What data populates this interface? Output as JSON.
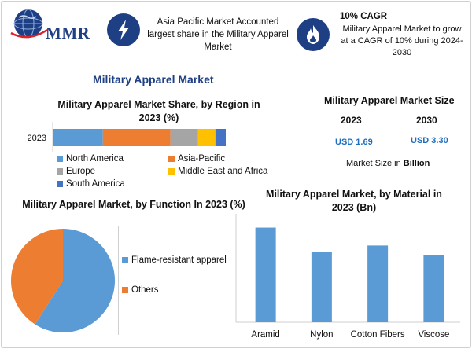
{
  "colors": {
    "navy": "#1f3f85",
    "blue": "#5b9bd5",
    "orange": "#ed7d31",
    "gray": "#a5a5a5",
    "yellow": "#ffc000",
    "darkblue": "#4472c4",
    "value_blue": "#1f6fc0"
  },
  "header": {
    "logo_text": "MMR",
    "highlight_1": "Asia Pacific Market Accounted largest share in the Military Apparel Market",
    "icon_1": "lightning-icon",
    "icon_2": "flame-icon",
    "cagr_title": "10% CAGR",
    "cagr_desc": "Military Apparel Market to grow at a CAGR of 10% during 2024-2030"
  },
  "main_title": "Military Apparel Market",
  "market_size": {
    "title": "Military Apparel Market Size",
    "years": [
      "2023",
      "2030"
    ],
    "values": [
      "USD 1.69",
      "USD 3.30"
    ],
    "note_prefix": "Market Size in ",
    "note_unit": "Billion"
  },
  "chart_data": [
    {
      "type": "bar",
      "orientation": "horizontal-stacked",
      "title": "Military Apparel Market Share, by Region in 2023 (%)",
      "categories": [
        "2023"
      ],
      "series": [
        {
          "name": "North America",
          "values": [
            29
          ],
          "color": "#5b9bd5"
        },
        {
          "name": "Asia-Pacific",
          "values": [
            39
          ],
          "color": "#ed7d31"
        },
        {
          "name": "Europe",
          "values": [
            16
          ],
          "color": "#a5a5a5"
        },
        {
          "name": "Middle East and Africa",
          "values": [
            10
          ],
          "color": "#ffc000"
        },
        {
          "name": "South America",
          "values": [
            6
          ],
          "color": "#4472c4"
        }
      ],
      "legend": "bottom"
    },
    {
      "type": "pie",
      "title": "Military Apparel Market, by Function In 2023 (%)",
      "slices": [
        {
          "name": "Flame-resistant apparel",
          "value": 59,
          "color": "#5b9bd5"
        },
        {
          "name": "Others",
          "value": 41,
          "color": "#ed7d31"
        }
      ],
      "legend": "right"
    },
    {
      "type": "bar",
      "title": "Military Apparel Market, by Material in 2023 (Bn)",
      "categories": [
        "Aramid",
        "Nylon",
        "Cotton Fibers",
        "Viscose"
      ],
      "values": [
        0.58,
        0.43,
        0.47,
        0.41
      ],
      "ylim": [
        0,
        0.65
      ],
      "color": "#5b9bd5"
    }
  ]
}
